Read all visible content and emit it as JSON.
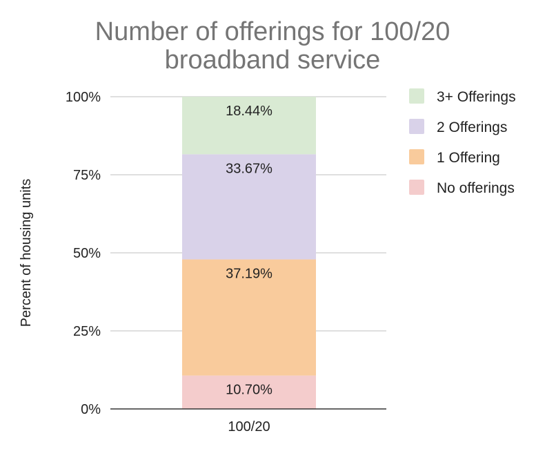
{
  "chart_data": {
    "type": "bar",
    "stacked": true,
    "title": [
      "Number of offerings for 100/20",
      "broadband service"
    ],
    "xlabel": "",
    "ylabel": "Percent of housing units",
    "categories": [
      "100/20"
    ],
    "ylim": [
      0,
      100
    ],
    "yticks": [
      "0%",
      "25%",
      "50%",
      "75%",
      "100%"
    ],
    "grid": true,
    "legend_position": "right",
    "series": [
      {
        "name": "No offerings",
        "values": [
          10.7
        ],
        "label": "10.70%",
        "color": "#f4cccc"
      },
      {
        "name": "1 Offering",
        "values": [
          37.19
        ],
        "label": "37.19%",
        "color": "#f9cb9c"
      },
      {
        "name": "2 Offerings",
        "values": [
          33.67
        ],
        "label": "33.67%",
        "color": "#d9d2e9"
      },
      {
        "name": "3+ Offerings",
        "values": [
          18.44
        ],
        "label": "18.44%",
        "color": "#d9ead3"
      }
    ],
    "legend_order": [
      "3+ Offerings",
      "2 Offerings",
      "1 Offering",
      "No offerings"
    ]
  }
}
